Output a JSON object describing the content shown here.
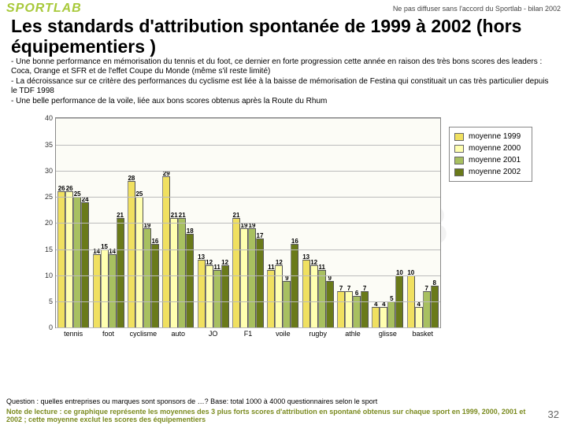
{
  "logo_text": "SPORTLAB",
  "disclaimer": "Ne pas diffuser sans l'accord du Sportlab - bilan 2002",
  "title": "Les standards d'attribution spontanée de 1999 à 2002 (hors équipementiers )",
  "notes": "- Une bonne performance en mémorisation du tennis et du foot, ce dernier en forte progression cette année en raison des très bons scores des leaders : Coca, Orange et SFR et de l'effet Coupe du Monde (même s'il reste limité)\n- La décroissance sur ce critère des performances du cyclisme est liée à la baisse de mémorisation de Festina qui constituait un cas très particulier depuis le TDF 1998\n- Une belle performance de la voile, liée aux bons scores obtenus après la Route du Rhum",
  "watermark": "SPORTLAB",
  "chart": {
    "type": "bar",
    "ylim": [
      0,
      40
    ],
    "ytick_step": 5,
    "background_color": "#fcfcf6",
    "grid_color": "#bbbbbb",
    "series": [
      {
        "label": "moyenne 1999",
        "color": "#f0e060"
      },
      {
        "label": "moyenne 2000",
        "color": "#ffffb0"
      },
      {
        "label": "moyenne 2001",
        "color": "#a8c060"
      },
      {
        "label": "moyenne 2002",
        "color": "#6a7a1a"
      }
    ],
    "categories": [
      "tennis",
      "foot",
      "cyclisme",
      "auto",
      "JO",
      "F1",
      "voile",
      "rugby",
      "athle",
      "glisse",
      "basket"
    ],
    "data": [
      [
        26,
        26,
        25,
        24
      ],
      [
        14,
        15,
        14,
        21
      ],
      [
        28,
        25,
        19,
        16
      ],
      [
        29,
        21,
        21,
        18
      ],
      [
        13,
        12,
        11,
        12
      ],
      [
        21,
        19,
        19,
        17
      ],
      [
        11,
        12,
        9,
        16
      ],
      [
        13,
        12,
        11,
        9
      ],
      [
        7,
        7,
        6,
        7
      ],
      [
        4,
        4,
        5,
        10
      ],
      [
        10,
        4,
        7,
        8
      ]
    ]
  },
  "question": "Question : quelles entreprises ou  marques sont sponsors de …? Base: total 1000 à 4000 questionnaires selon le sport",
  "reading_note": "Note de lecture : ce graphique représente les moyennes des 3 plus forts scores d'attribution en spontané obtenus sur chaque sport en 1999, 2000, 2001 et 2002 ; cette moyenne exclut les scores des équipementiers",
  "page_number": "32"
}
